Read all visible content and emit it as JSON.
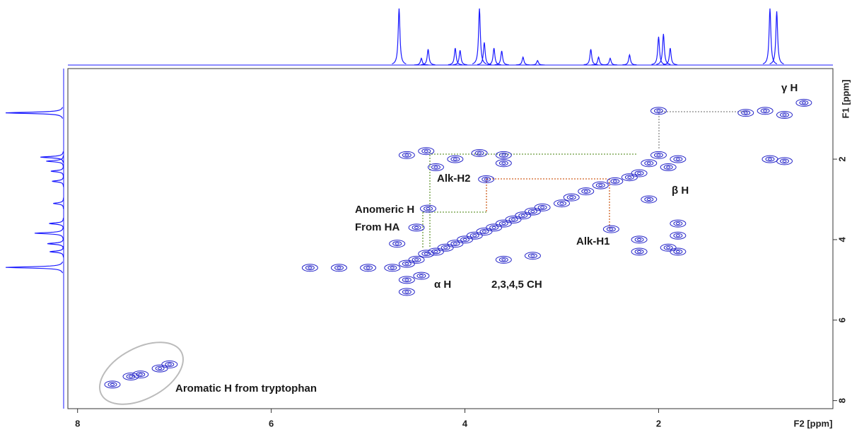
{
  "chart_data": {
    "type": "contour",
    "xlabel": "F2 [ppm]",
    "ylabel": "F1 [ppm]",
    "xlim": [
      8.1,
      0.2
    ],
    "ylim": [
      8.2,
      -0.25
    ],
    "xticks": [
      8,
      6,
      4,
      2
    ],
    "yticks": [
      2,
      4,
      6,
      8
    ],
    "color": "#2424c8",
    "peaks": {
      "x": [
        4.75,
        4.6,
        4.5,
        4.4,
        4.3,
        4.2,
        4.1,
        4.0,
        3.9,
        3.8,
        3.7,
        3.6,
        3.5,
        3.4,
        3.3,
        3.2,
        3.0,
        2.9,
        2.75,
        2.6,
        2.45,
        2.3,
        2.2,
        5.3,
        5.0,
        5.6,
        4.6,
        4.6,
        4.45,
        2.0,
        2.0,
        2.1,
        1.8,
        1.9,
        0.9,
        0.7,
        1.1,
        0.5,
        0.85,
        0.7,
        4.4,
        4.1,
        3.85,
        3.6,
        3.6,
        4.3,
        4.6,
        3.78,
        2.49,
        4.38,
        4.5,
        1.8,
        1.8,
        1.9,
        1.8,
        2.2,
        2.2,
        2.1,
        3.3,
        3.6,
        4.7,
        7.64,
        7.45,
        7.35,
        7.15,
        7.05
      ],
      "y": [
        4.7,
        4.6,
        4.5,
        4.35,
        4.3,
        4.2,
        4.1,
        4.0,
        3.9,
        3.8,
        3.7,
        3.6,
        3.5,
        3.4,
        3.3,
        3.2,
        3.1,
        2.95,
        2.8,
        2.65,
        2.55,
        2.45,
        2.35,
        4.7,
        4.7,
        4.7,
        5.0,
        5.3,
        4.9,
        0.8,
        1.9,
        2.1,
        2.0,
        2.2,
        0.8,
        0.9,
        0.85,
        0.6,
        2.0,
        2.05,
        1.8,
        2.0,
        1.85,
        1.9,
        2.1,
        2.2,
        1.9,
        2.5,
        3.74,
        3.23,
        3.7,
        3.6,
        3.9,
        4.2,
        4.3,
        4.3,
        4.0,
        3.0,
        4.4,
        4.5,
        4.1,
        7.6,
        7.4,
        7.35,
        7.2,
        7.1
      ]
    },
    "intensity_lim": [
      0,
      100
    ],
    "f2_projection": {
      "ppm": [
        4.68,
        4.45,
        4.38,
        4.1,
        4.05,
        3.85,
        3.8,
        3.7,
        3.62,
        3.4,
        3.25,
        2.7,
        2.62,
        2.5,
        2.3,
        2.0,
        1.95,
        1.88,
        0.85,
        0.78
      ],
      "intensity": [
        100,
        12,
        28,
        30,
        26,
        100,
        40,
        30,
        25,
        14,
        8,
        28,
        14,
        12,
        18,
        50,
        55,
        30,
        100,
        95
      ]
    },
    "f1_projection": {
      "ppm": [
        0.85,
        1.95,
        2.05,
        2.3,
        2.55,
        3.1,
        3.6,
        3.84,
        4.1,
        4.3,
        4.69
      ],
      "intensity": [
        100,
        40,
        30,
        22,
        20,
        18,
        25,
        50,
        28,
        24,
        100
      ]
    },
    "annotations": [
      "γ H",
      "β H",
      "Alk-H2",
      "Anomeric H",
      "From HA",
      "Alk-H1",
      "α H",
      "2,3,4,5 CH",
      "Aromatic H from tryptophan"
    ]
  }
}
